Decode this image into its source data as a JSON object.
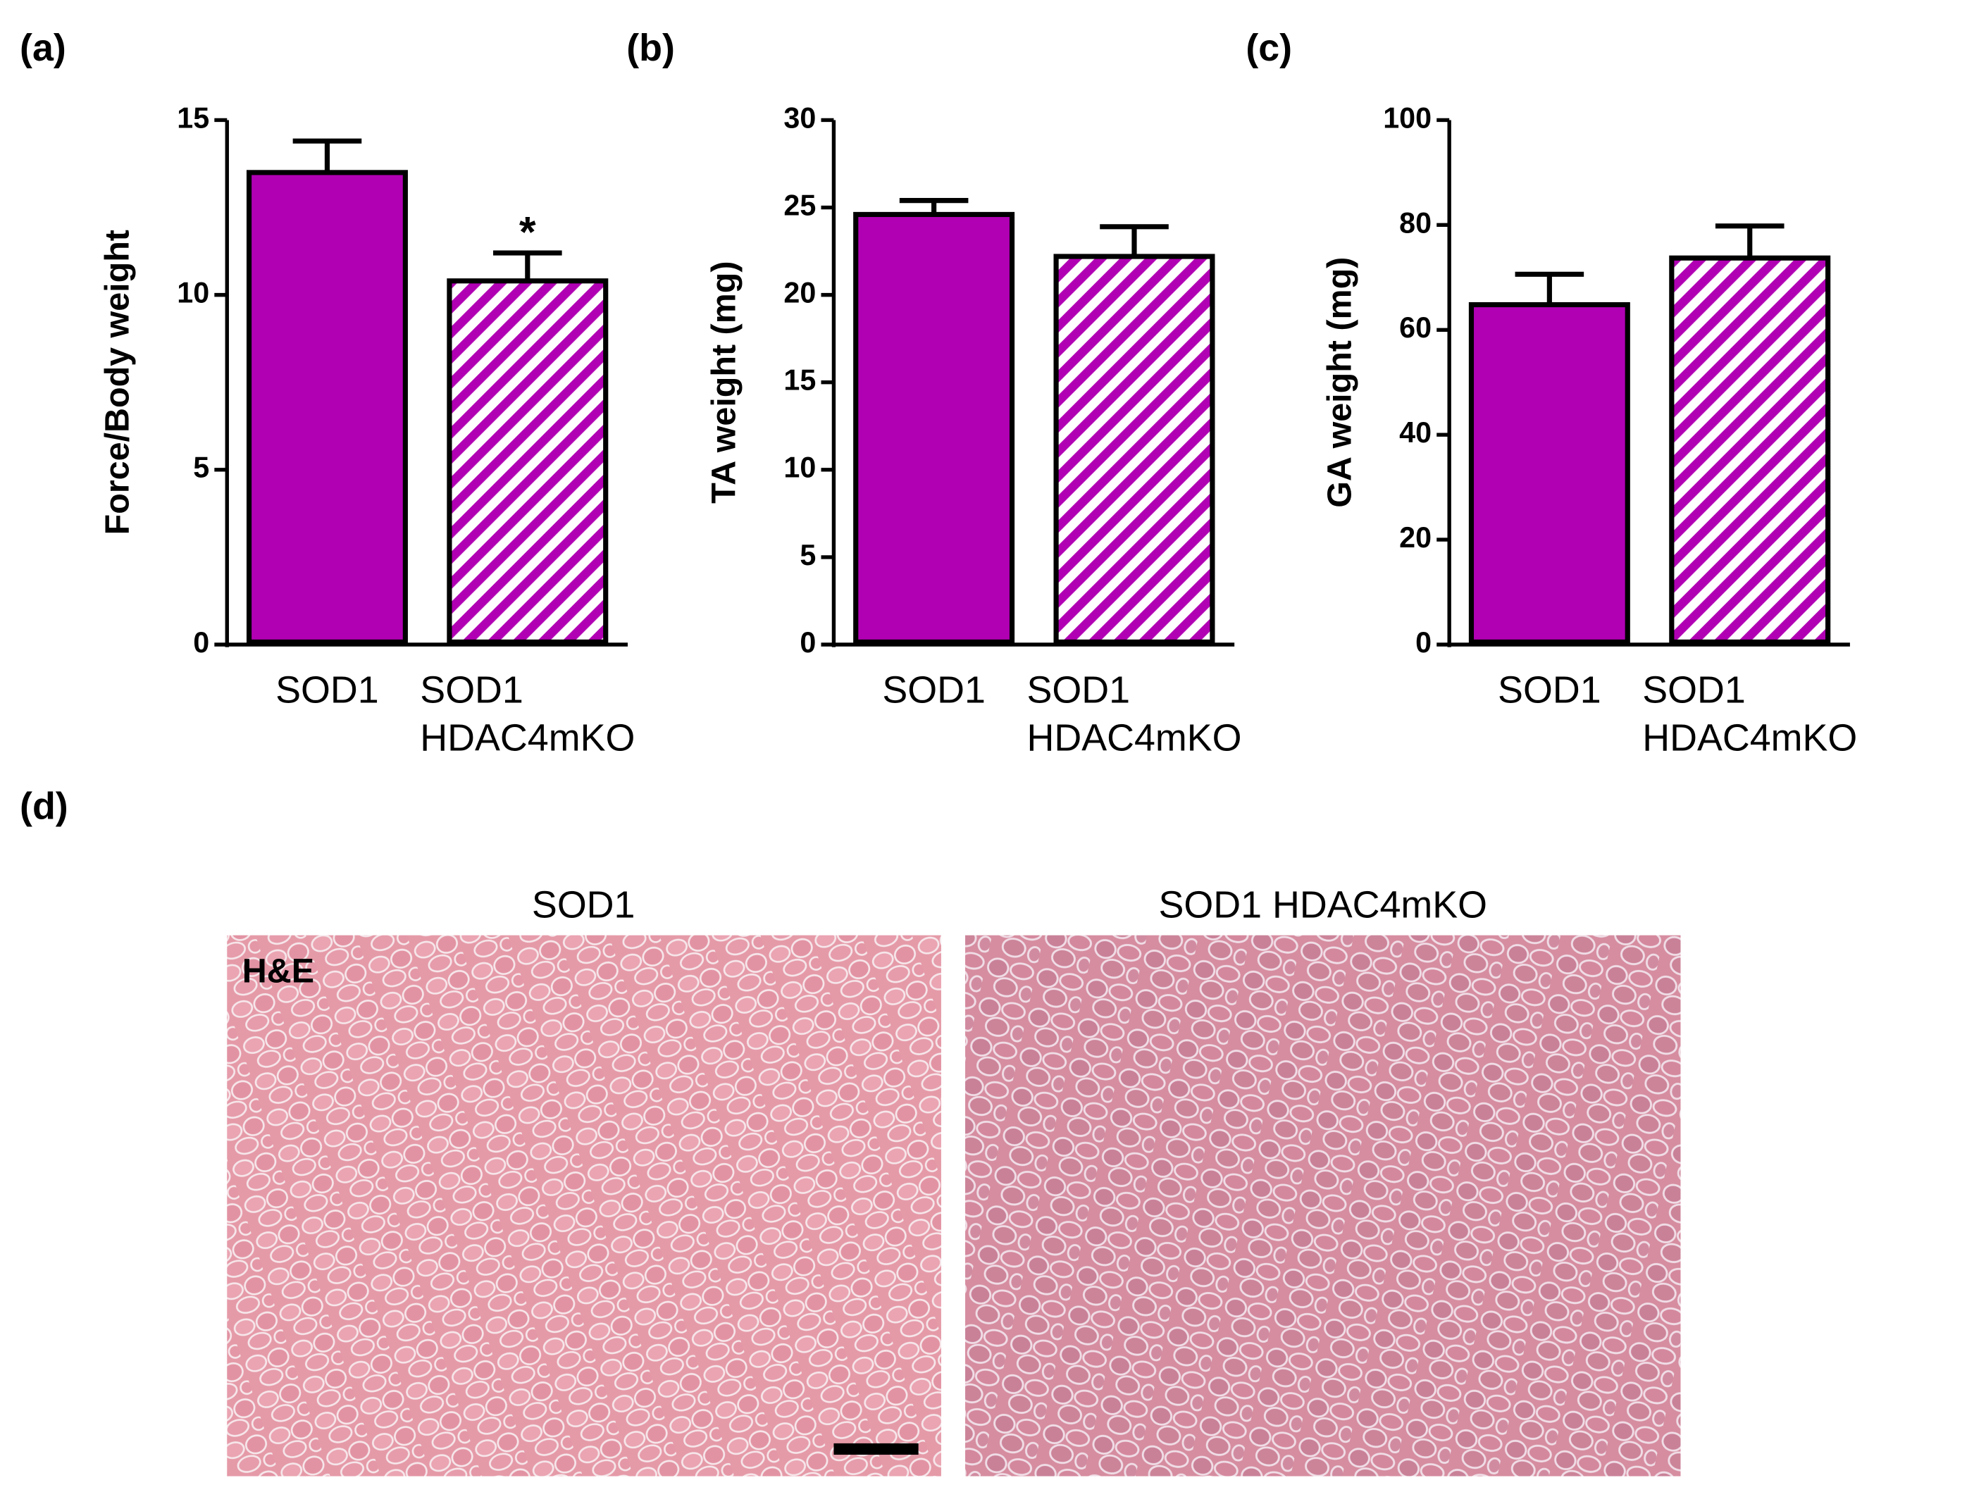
{
  "panel_labels": [
    "(a)",
    "(b)",
    "(c)",
    "(d)"
  ],
  "chart_data": [
    {
      "type": "bar",
      "ylabel": "Force/Body weight",
      "categories": [
        "SOD1",
        "SOD1 HDAC4mKO"
      ],
      "values": [
        13.5,
        10.4
      ],
      "errors": [
        0.9,
        0.8
      ],
      "color": "#b100b4",
      "hatched": [
        false,
        true
      ],
      "ylim": [
        0,
        15
      ],
      "yticks": [
        0,
        5,
        10,
        15
      ],
      "annotations": [
        "*"
      ]
    },
    {
      "type": "bar",
      "ylabel": "TA weight (mg)",
      "categories": [
        "SOD1",
        "SOD1 HDAC4mKO"
      ],
      "values": [
        24.6,
        22.2
      ],
      "errors": [
        0.8,
        1.7
      ],
      "color": "#b100b4",
      "hatched": [
        false,
        true
      ],
      "ylim": [
        0,
        30
      ],
      "yticks": [
        0,
        5,
        10,
        15,
        20,
        25,
        30
      ]
    },
    {
      "type": "bar",
      "ylabel": "GA weight (mg)",
      "categories": [
        "SOD1",
        "SOD1 HDAC4mKO"
      ],
      "values": [
        64.8,
        73.7
      ],
      "errors": [
        5.8,
        6.1
      ],
      "color": "#b100b4",
      "hatched": [
        false,
        true
      ],
      "ylim": [
        0,
        100
      ],
      "yticks": [
        0,
        20,
        40,
        60,
        80,
        100
      ]
    }
  ],
  "histology": {
    "titles": [
      "SOD1",
      "SOD1 HDAC4mKO"
    ],
    "stain_label": "H&E"
  }
}
